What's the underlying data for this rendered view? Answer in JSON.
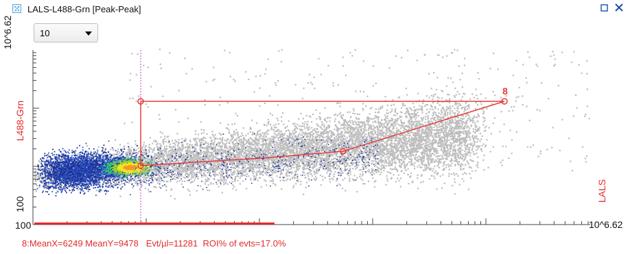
{
  "window": {
    "title": "LALS-L488-Grn [Peak-Peak]",
    "icon": "scatter-plot-icon",
    "restore_icon": "restore-icon",
    "close_icon": "close-icon"
  },
  "combo": {
    "value": "10"
  },
  "plot": {
    "y_label": "L488-Grn",
    "x_label": "LALS",
    "y_max_label": "10^6.62",
    "y_mid_label": "100",
    "y_min_label": "100",
    "x_max_label": "10^6.62",
    "roi_id": "8",
    "roi_color": "#e63a3a",
    "gate_color": "#cc33cc",
    "event_color": "#bdbdbd"
  },
  "stats": {
    "text": "8:MeanX=6249 MeanY=9478   Evt/µl=11281  ROI% of evts=17.0%"
  }
}
